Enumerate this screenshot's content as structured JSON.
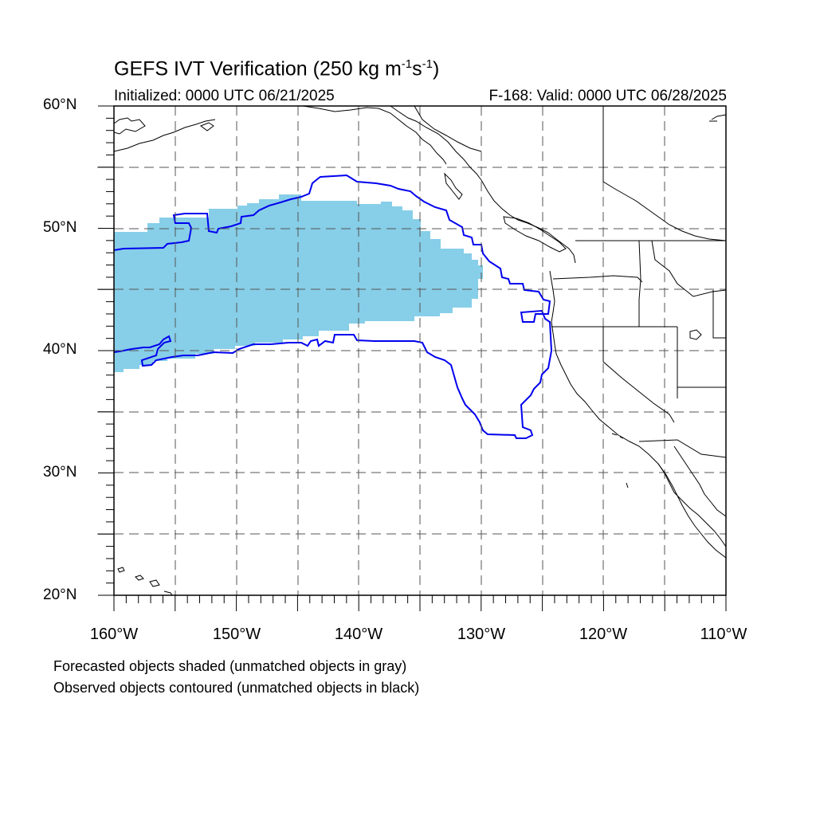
{
  "title": {
    "main": "GEFS IVT Verification (250 kg m",
    "exp1": "-1",
    "mid": "s",
    "exp2": "-1",
    "end": ")"
  },
  "subtitle": {
    "initialized": "Initialized: 0000 UTC 06/21/2025",
    "valid": "F-168: Valid: 0000 UTC 06/28/2025"
  },
  "axes": {
    "lat_labels": [
      "60°N",
      "50°N",
      "40°N",
      "30°N",
      "20°N"
    ],
    "lon_labels": [
      "160°W",
      "150°W",
      "140°W",
      "130°W",
      "120°W",
      "110°W"
    ],
    "lon_range": [
      -160,
      -110
    ],
    "lat_range": [
      20,
      60
    ],
    "grid": "dashed every 5°"
  },
  "legend": {
    "line1": "Forecasted objects shaded (unmatched objects in gray)",
    "line2": "Observed objects contoured (unmatched objects in black)"
  },
  "colors": {
    "forecast_fill": "#87CEE8",
    "observed_contour": "#0000EE",
    "coastline": "#000000",
    "grid": "#555555"
  }
}
